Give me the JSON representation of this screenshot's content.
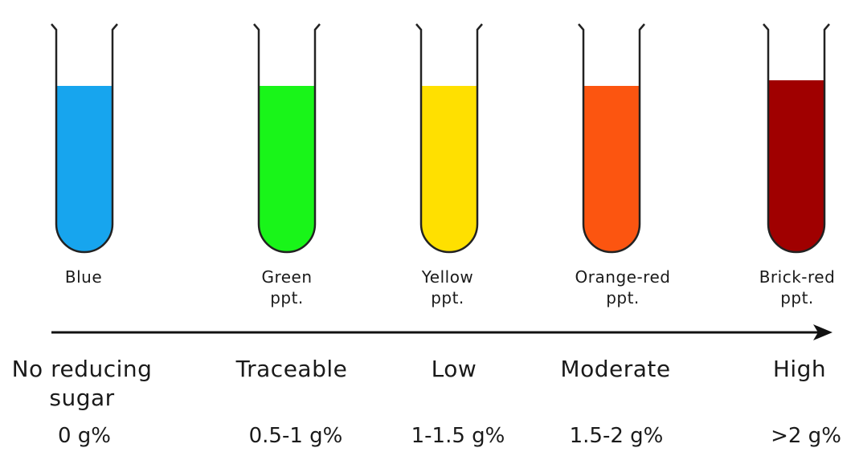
{
  "tubes": [
    {
      "color_name": "Blue",
      "ppt": "",
      "fill": "#17a5ee",
      "level": "No reducing sugar",
      "value": "0 g%"
    },
    {
      "color_name": "Green",
      "ppt": "ppt.",
      "fill": "#19f519",
      "level": "Traceable",
      "value": "0.5-1 g%"
    },
    {
      "color_name": "Yellow",
      "ppt": "ppt.",
      "fill": "#ffe000",
      "level": "Low",
      "value": "1-1.5 g%"
    },
    {
      "color_name": "Orange-red",
      "ppt": "ppt.",
      "fill": "#fc5510",
      "level": "Moderate",
      "value": "1.5-2 g%"
    },
    {
      "color_name": "Brick-red",
      "ppt": "ppt.",
      "fill": "#a00000",
      "level": "High",
      "value": ">2 g%"
    }
  ],
  "outline_color": "#222222"
}
